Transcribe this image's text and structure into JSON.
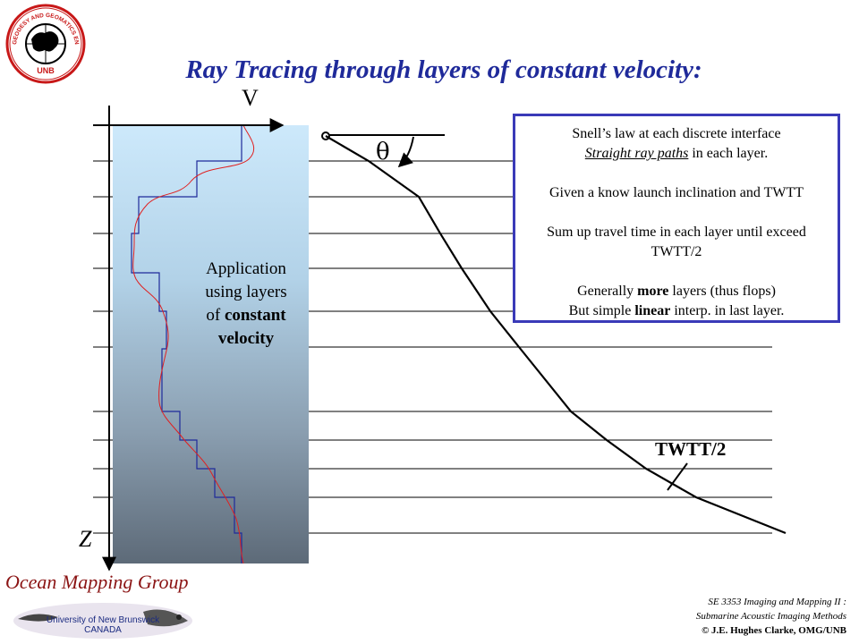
{
  "title": "Ray Tracing through layers of constant velocity:",
  "logo": {
    "ring_text": "GEODESY AND GEOMATICS ENGINEERING",
    "bottom_text": "UNB"
  },
  "axes": {
    "v_label": "V",
    "z_label": "Z"
  },
  "angle_label": "θ",
  "app_text": {
    "line1": "Application",
    "line2": "using layers",
    "line3_pre": "of ",
    "line3_bold": "constant",
    "line4_bold": "velocity"
  },
  "twtt_label": "TWTT/2",
  "info_box": {
    "line1": "Snell’s law at each discrete interface",
    "line2_u": "Straight ray paths",
    "line2_rest": " in each layer.",
    "line3": "Given a know launch inclination and TWTT",
    "line4": "Sum up travel time in each layer until exceed",
    "line5": "TWTT/2",
    "line6_pre": "Generally ",
    "line6_bold": "more",
    "line6_post": " layers (thus flops)",
    "line7_pre": "But simple ",
    "line7_bold": "linear",
    "line7_post": " interp. in last layer."
  },
  "footer": {
    "omg": "Ocean Mapping Group",
    "unb_line1": "University of New Brunswick",
    "unb_line2": "CANADA",
    "course_line1": "SE 3353 Imaging and Mapping II :",
    "course_line2": "Submarine Acoustic Imaging Methods",
    "copyright": "© J.E. Hughes Clarke, OMG/UNB"
  },
  "colors": {
    "title": "#1f2a9a",
    "step_profile": "#1f2a9a",
    "smooth_profile": "#e02020",
    "box_border": "#3a3ab8",
    "omg_text": "#8b1414"
  }
}
